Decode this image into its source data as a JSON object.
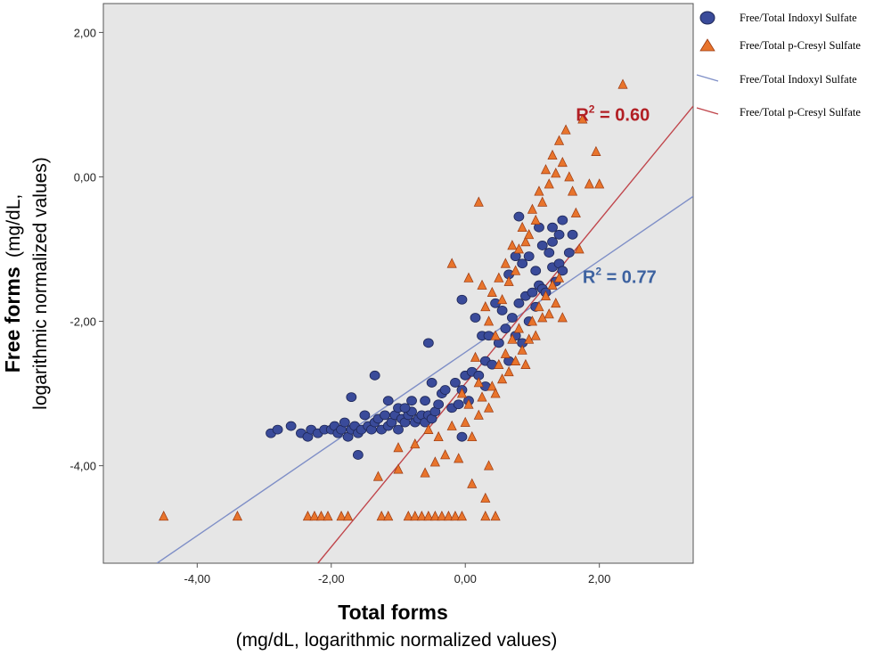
{
  "chart_data": {
    "type": "scatter",
    "xlabel_bold": "Total forms",
    "xlabel_sub": "(mg/dL, logarithmic normalized values)",
    "ylabel_bold": "Free forms",
    "ylabel_sub_a": "(mg/dL,",
    "ylabel_sub_b": "logarithmic normalized values)",
    "xlim": [
      -5.4,
      3.4
    ],
    "ylim": [
      -5.35,
      2.4
    ],
    "x_ticks": [
      {
        "value": -4,
        "label": "-4,00"
      },
      {
        "value": -2,
        "label": "-2,00"
      },
      {
        "value": 0,
        "label": "0,00"
      },
      {
        "value": 2,
        "label": "2,00"
      }
    ],
    "y_ticks": [
      {
        "value": 2,
        "label": "2,00"
      },
      {
        "value": 0,
        "label": "0,00"
      },
      {
        "value": -2,
        "label": "-2,00"
      },
      {
        "value": -4,
        "label": "-4,00"
      }
    ],
    "grid": false,
    "legend_position": "top-right",
    "colors": {
      "plot_bg": "#e6e6e6",
      "indoxyl": "#3a4b9a",
      "cresyl": "#e8742c",
      "indoxyl_line": "#7f8fc7",
      "cresyl_line": "#c0464c",
      "r2_indoxyl": "#3d62a0",
      "r2_cresyl": "#b21f24"
    },
    "legend": [
      {
        "label": "Free/Total Indoxyl Sulfate",
        "symbol": "circle",
        "color_key": "indoxyl"
      },
      {
        "label": "Free/Total p-Cresyl Sulfate",
        "symbol": "triangle",
        "color_key": "cresyl"
      },
      {
        "label": "Free/Total Indoxyl Sulfate",
        "symbol": "line",
        "color_key": "indoxyl_line"
      },
      {
        "label": "Free/Total p-Cresyl Sulfate",
        "symbol": "line",
        "color_key": "cresyl_line"
      }
    ],
    "annotations": [
      {
        "text_a": "R",
        "text_sup": "2",
        "text_b": " = 0.60",
        "x": 1.65,
        "y": 0.78,
        "color_key": "r2_cresyl"
      },
      {
        "text_a": "R",
        "text_sup": "2",
        "text_b": " = 0.77",
        "x": 1.75,
        "y": -1.47,
        "color_key": "r2_indoxyl"
      }
    ],
    "fit_lines": [
      {
        "series": "Free/Total Indoxyl Sulfate",
        "color_key": "indoxyl_line",
        "x": [
          -4.6,
          3.4
        ],
        "y": [
          -5.35,
          -0.27
        ]
      },
      {
        "series": "Free/Total p-Cresyl Sulfate",
        "color_key": "cresyl_line",
        "x": [
          -2.2,
          3.4
        ],
        "y": [
          -5.35,
          0.98
        ]
      }
    ],
    "series": [
      {
        "name": "Free/Total Indoxyl Sulfate",
        "marker": "circle",
        "color_key": "indoxyl",
        "points": [
          [
            -2.9,
            -3.55
          ],
          [
            -2.8,
            -3.5
          ],
          [
            -2.6,
            -3.45
          ],
          [
            -2.45,
            -3.55
          ],
          [
            -2.35,
            -3.6
          ],
          [
            -2.3,
            -3.5
          ],
          [
            -2.2,
            -3.55
          ],
          [
            -2.1,
            -3.5
          ],
          [
            -2.0,
            -3.5
          ],
          [
            -1.95,
            -3.45
          ],
          [
            -1.9,
            -3.55
          ],
          [
            -1.85,
            -3.5
          ],
          [
            -1.8,
            -3.4
          ],
          [
            -1.75,
            -3.6
          ],
          [
            -1.7,
            -3.5
          ],
          [
            -1.65,
            -3.45
          ],
          [
            -1.6,
            -3.55
          ],
          [
            -1.55,
            -3.5
          ],
          [
            -1.5,
            -3.3
          ],
          [
            -1.45,
            -3.45
          ],
          [
            -1.4,
            -3.5
          ],
          [
            -1.35,
            -3.4
          ],
          [
            -1.3,
            -3.35
          ],
          [
            -1.25,
            -3.5
          ],
          [
            -1.2,
            -3.3
          ],
          [
            -1.15,
            -3.45
          ],
          [
            -1.1,
            -3.4
          ],
          [
            -1.05,
            -3.3
          ],
          [
            -1.0,
            -3.5
          ],
          [
            -0.95,
            -3.35
          ],
          [
            -0.9,
            -3.4
          ],
          [
            -0.85,
            -3.3
          ],
          [
            -0.8,
            -3.25
          ],
          [
            -0.75,
            -3.4
          ],
          [
            -0.7,
            -3.35
          ],
          [
            -0.65,
            -3.3
          ],
          [
            -0.6,
            -3.4
          ],
          [
            -0.55,
            -3.3
          ],
          [
            -0.5,
            -3.35
          ],
          [
            -0.45,
            -3.25
          ],
          [
            -1.7,
            -3.05
          ],
          [
            -1.35,
            -2.75
          ],
          [
            -1.15,
            -3.1
          ],
          [
            -1.0,
            -3.2
          ],
          [
            -0.9,
            -3.2
          ],
          [
            -0.8,
            -3.1
          ],
          [
            -0.6,
            -3.1
          ],
          [
            -0.5,
            -2.85
          ],
          [
            -0.4,
            -3.15
          ],
          [
            -0.35,
            -3.0
          ],
          [
            -0.3,
            -2.95
          ],
          [
            -0.2,
            -3.2
          ],
          [
            -0.15,
            -2.85
          ],
          [
            -0.1,
            -3.15
          ],
          [
            -0.05,
            -2.95
          ],
          [
            0.0,
            -2.75
          ],
          [
            0.05,
            -3.1
          ],
          [
            0.1,
            -2.7
          ],
          [
            -0.55,
            -2.3
          ],
          [
            -0.05,
            -1.7
          ],
          [
            0.15,
            -1.95
          ],
          [
            0.25,
            -2.2
          ],
          [
            0.3,
            -2.55
          ],
          [
            0.35,
            -2.2
          ],
          [
            0.4,
            -2.6
          ],
          [
            0.45,
            -1.75
          ],
          [
            0.5,
            -2.3
          ],
          [
            0.55,
            -1.85
          ],
          [
            0.6,
            -2.1
          ],
          [
            0.65,
            -2.55
          ],
          [
            0.7,
            -1.95
          ],
          [
            0.75,
            -2.2
          ],
          [
            0.8,
            -1.75
          ],
          [
            0.85,
            -2.3
          ],
          [
            0.9,
            -1.65
          ],
          [
            0.95,
            -2.0
          ],
          [
            1.0,
            -1.6
          ],
          [
            1.05,
            -1.8
          ],
          [
            1.1,
            -1.5
          ],
          [
            1.15,
            -1.55
          ],
          [
            1.2,
            -1.6
          ],
          [
            1.3,
            -1.25
          ],
          [
            1.35,
            -1.45
          ],
          [
            1.4,
            -1.2
          ],
          [
            1.45,
            -1.3
          ],
          [
            0.65,
            -1.35
          ],
          [
            0.75,
            -1.1
          ],
          [
            0.85,
            -1.2
          ],
          [
            0.95,
            -1.1
          ],
          [
            1.05,
            -1.3
          ],
          [
            1.15,
            -0.95
          ],
          [
            1.25,
            -1.05
          ],
          [
            1.3,
            -0.9
          ],
          [
            1.4,
            -0.8
          ],
          [
            1.55,
            -1.05
          ],
          [
            1.6,
            -0.8
          ],
          [
            0.8,
            -0.55
          ],
          [
            1.1,
            -0.7
          ],
          [
            1.3,
            -0.7
          ],
          [
            1.45,
            -0.6
          ],
          [
            -1.6,
            -3.85
          ],
          [
            -0.05,
            -3.6
          ],
          [
            0.2,
            -2.75
          ],
          [
            0.3,
            -2.9
          ]
        ]
      },
      {
        "name": "Free/Total p-Cresyl Sulfate",
        "marker": "triangle",
        "color_key": "cresyl",
        "points": [
          [
            -4.5,
            -4.7
          ],
          [
            -3.4,
            -4.7
          ],
          [
            -2.35,
            -4.7
          ],
          [
            -2.25,
            -4.7
          ],
          [
            -2.15,
            -4.7
          ],
          [
            -2.05,
            -4.7
          ],
          [
            -1.85,
            -4.7
          ],
          [
            -1.75,
            -4.7
          ],
          [
            -1.25,
            -4.7
          ],
          [
            -1.15,
            -4.7
          ],
          [
            -0.85,
            -4.7
          ],
          [
            -0.75,
            -4.7
          ],
          [
            -0.65,
            -4.7
          ],
          [
            -0.55,
            -4.7
          ],
          [
            -0.45,
            -4.7
          ],
          [
            -0.35,
            -4.7
          ],
          [
            -0.25,
            -4.7
          ],
          [
            -0.15,
            -4.7
          ],
          [
            -0.05,
            -4.7
          ],
          [
            0.3,
            -4.7
          ],
          [
            0.45,
            -4.7
          ],
          [
            -1.3,
            -4.15
          ],
          [
            -1.0,
            -4.05
          ],
          [
            -0.6,
            -4.1
          ],
          [
            -0.45,
            -3.95
          ],
          [
            -0.3,
            -3.85
          ],
          [
            -0.1,
            -3.9
          ],
          [
            0.1,
            -4.25
          ],
          [
            0.3,
            -4.45
          ],
          [
            0.35,
            -4.0
          ],
          [
            -1.0,
            -3.75
          ],
          [
            -0.75,
            -3.7
          ],
          [
            -0.55,
            -3.5
          ],
          [
            -0.4,
            -3.6
          ],
          [
            -0.2,
            -3.45
          ],
          [
            0.0,
            -3.4
          ],
          [
            0.1,
            -3.6
          ],
          [
            0.2,
            -3.3
          ],
          [
            0.25,
            -3.05
          ],
          [
            0.35,
            -3.2
          ],
          [
            0.4,
            -2.9
          ],
          [
            0.45,
            -3.0
          ],
          [
            0.5,
            -2.6
          ],
          [
            0.55,
            -2.8
          ],
          [
            0.6,
            -2.45
          ],
          [
            0.65,
            -2.7
          ],
          [
            0.7,
            -2.25
          ],
          [
            0.75,
            -2.55
          ],
          [
            0.8,
            -2.1
          ],
          [
            0.85,
            -2.4
          ],
          [
            0.9,
            -2.6
          ],
          [
            0.95,
            -2.25
          ],
          [
            1.0,
            -2.0
          ],
          [
            1.05,
            -2.2
          ],
          [
            1.1,
            -1.8
          ],
          [
            1.15,
            -1.95
          ],
          [
            1.2,
            -1.65
          ],
          [
            1.25,
            -1.9
          ],
          [
            1.3,
            -1.5
          ],
          [
            1.35,
            -1.75
          ],
          [
            1.4,
            -1.4
          ],
          [
            1.45,
            -1.95
          ],
          [
            0.25,
            -1.5
          ],
          [
            0.3,
            -1.8
          ],
          [
            0.35,
            -2.0
          ],
          [
            0.4,
            -1.6
          ],
          [
            0.45,
            -2.2
          ],
          [
            0.5,
            -1.4
          ],
          [
            0.55,
            -1.7
          ],
          [
            0.6,
            -1.2
          ],
          [
            0.65,
            -1.45
          ],
          [
            0.7,
            -0.95
          ],
          [
            0.75,
            -1.3
          ],
          [
            0.8,
            -1.0
          ],
          [
            0.85,
            -0.7
          ],
          [
            0.9,
            -0.9
          ],
          [
            0.95,
            -0.8
          ],
          [
            1.0,
            -0.45
          ],
          [
            1.05,
            -0.6
          ],
          [
            1.1,
            -0.2
          ],
          [
            1.15,
            -0.35
          ],
          [
            1.2,
            0.1
          ],
          [
            1.25,
            -0.1
          ],
          [
            1.3,
            0.3
          ],
          [
            1.35,
            0.05
          ],
          [
            1.4,
            0.5
          ],
          [
            1.45,
            0.2
          ],
          [
            1.5,
            0.65
          ],
          [
            1.55,
            0.0
          ],
          [
            1.6,
            -0.2
          ],
          [
            1.65,
            -0.5
          ],
          [
            1.7,
            -1.0
          ],
          [
            1.75,
            0.8
          ],
          [
            1.85,
            -0.1
          ],
          [
            1.95,
            0.35
          ],
          [
            2.0,
            -0.1
          ],
          [
            2.35,
            1.28
          ],
          [
            0.2,
            -0.35
          ],
          [
            -0.2,
            -1.2
          ],
          [
            0.05,
            -1.4
          ],
          [
            0.15,
            -2.5
          ],
          [
            0.2,
            -2.85
          ],
          [
            -0.05,
            -3.0
          ],
          [
            0.05,
            -3.15
          ]
        ]
      }
    ]
  }
}
